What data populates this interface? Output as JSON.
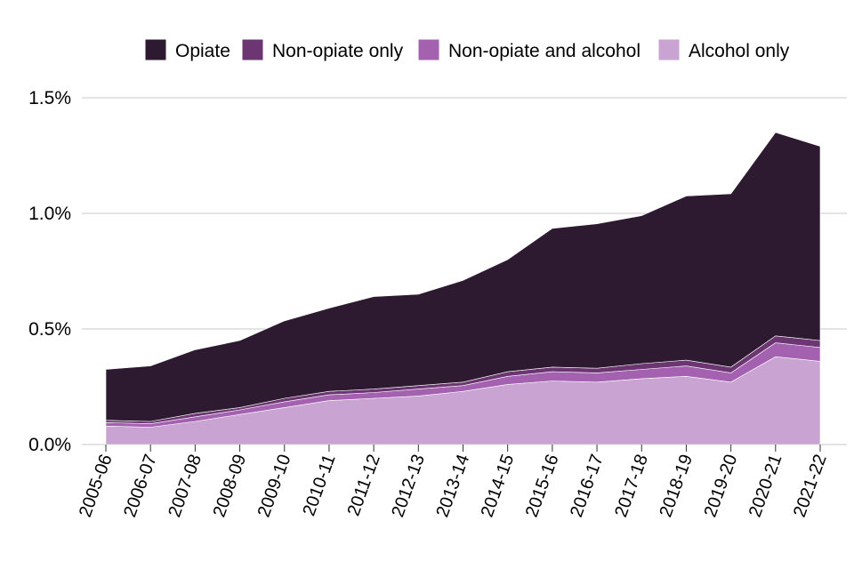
{
  "chart_data": {
    "type": "area",
    "stacked": true,
    "title": "",
    "xlabel": "",
    "ylabel": "",
    "ylim": [
      0,
      1.5
    ],
    "yticks": [
      0.0,
      0.5,
      1.0,
      1.5
    ],
    "ytick_labels": [
      "0.0%",
      "0.5%",
      "1.0%",
      "1.5%"
    ],
    "grid": true,
    "legend_position": "top",
    "categories": [
      "2005-06",
      "2006-07",
      "2007-08",
      "2008-09",
      "2009-10",
      "2010-11",
      "2011-12",
      "2012-13",
      "2013-14",
      "2014-15",
      "2015-16",
      "2016-17",
      "2017-18",
      "2018-19",
      "2019-20",
      "2020-21",
      "2021-22"
    ],
    "series": [
      {
        "name": "Alcohol only",
        "color": "#c9a3d1",
        "values": [
          0.08,
          0.075,
          0.1,
          0.13,
          0.16,
          0.19,
          0.2,
          0.21,
          0.23,
          0.26,
          0.275,
          0.27,
          0.285,
          0.295,
          0.27,
          0.38,
          0.36
        ]
      },
      {
        "name": "Non-opiate and alcohol",
        "color": "#a361b0",
        "values": [
          0.015,
          0.015,
          0.02,
          0.02,
          0.025,
          0.025,
          0.025,
          0.03,
          0.025,
          0.035,
          0.04,
          0.04,
          0.04,
          0.045,
          0.04,
          0.06,
          0.06
        ]
      },
      {
        "name": "Non-opiate only",
        "color": "#6b3672",
        "values": [
          0.01,
          0.01,
          0.015,
          0.01,
          0.015,
          0.015,
          0.015,
          0.015,
          0.015,
          0.02,
          0.02,
          0.02,
          0.025,
          0.025,
          0.025,
          0.03,
          0.03
        ]
      },
      {
        "name": "Opiate",
        "color": "#2e1a30",
        "values": [
          0.22,
          0.24,
          0.275,
          0.29,
          0.335,
          0.36,
          0.4,
          0.395,
          0.44,
          0.485,
          0.6,
          0.625,
          0.64,
          0.71,
          0.75,
          0.88,
          0.84
        ]
      }
    ],
    "legend_order": [
      "Opiate",
      "Non-opiate only",
      "Non-opiate and alcohol",
      "Alcohol only"
    ]
  }
}
